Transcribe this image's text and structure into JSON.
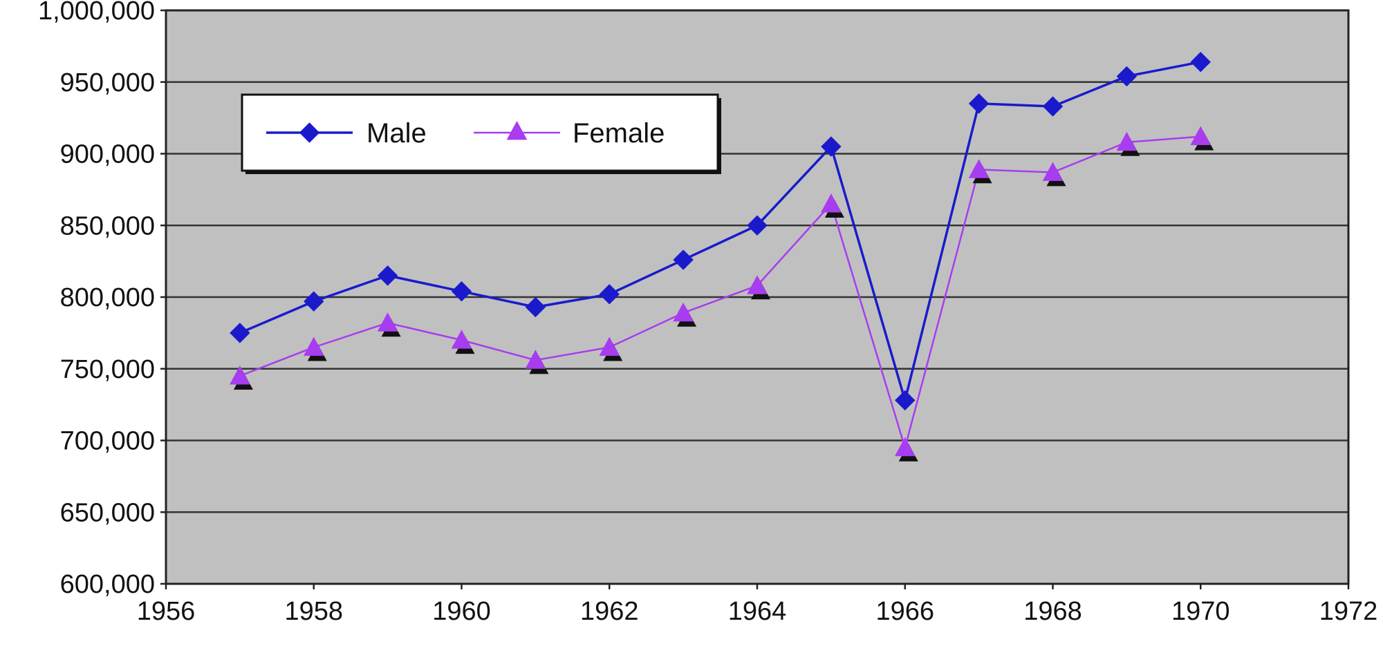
{
  "chart_data": {
    "type": "line",
    "title": "",
    "xlabel": "",
    "ylabel": "",
    "xlim": [
      1956,
      1972
    ],
    "ylim": [
      600000,
      1000000
    ],
    "x_ticks": [
      1956,
      1958,
      1960,
      1962,
      1964,
      1966,
      1968,
      1970,
      1972
    ],
    "y_ticks": [
      600000,
      650000,
      700000,
      750000,
      800000,
      850000,
      900000,
      950000,
      1000000
    ],
    "x_tick_labels": [
      "1956",
      "1958",
      "1960",
      "1962",
      "1964",
      "1966",
      "1968",
      "1970",
      "1972"
    ],
    "y_tick_labels": [
      "600,000",
      "650,000",
      "700,000",
      "750,000",
      "800,000",
      "850,000",
      "900,000",
      "950,000",
      "1,000,000"
    ],
    "grid": true,
    "legend_position": "top-left",
    "background_color": "#c0c0c0",
    "x": [
      1957,
      1958,
      1959,
      1960,
      1961,
      1962,
      1963,
      1964,
      1965,
      1966,
      1967,
      1968,
      1969,
      1970
    ],
    "series": [
      {
        "name": "Male",
        "color": "#1a1acc",
        "marker": "diamond",
        "values": [
          775000,
          797000,
          815000,
          804000,
          793000,
          802000,
          826000,
          850000,
          905000,
          728000,
          935000,
          933000,
          954000,
          964000
        ]
      },
      {
        "name": "Female",
        "color": "#a83cf0",
        "marker": "triangle",
        "values": [
          745000,
          765000,
          782000,
          770000,
          756000,
          765000,
          789000,
          808000,
          865000,
          695000,
          889000,
          887000,
          908000,
          912000
        ]
      }
    ]
  }
}
